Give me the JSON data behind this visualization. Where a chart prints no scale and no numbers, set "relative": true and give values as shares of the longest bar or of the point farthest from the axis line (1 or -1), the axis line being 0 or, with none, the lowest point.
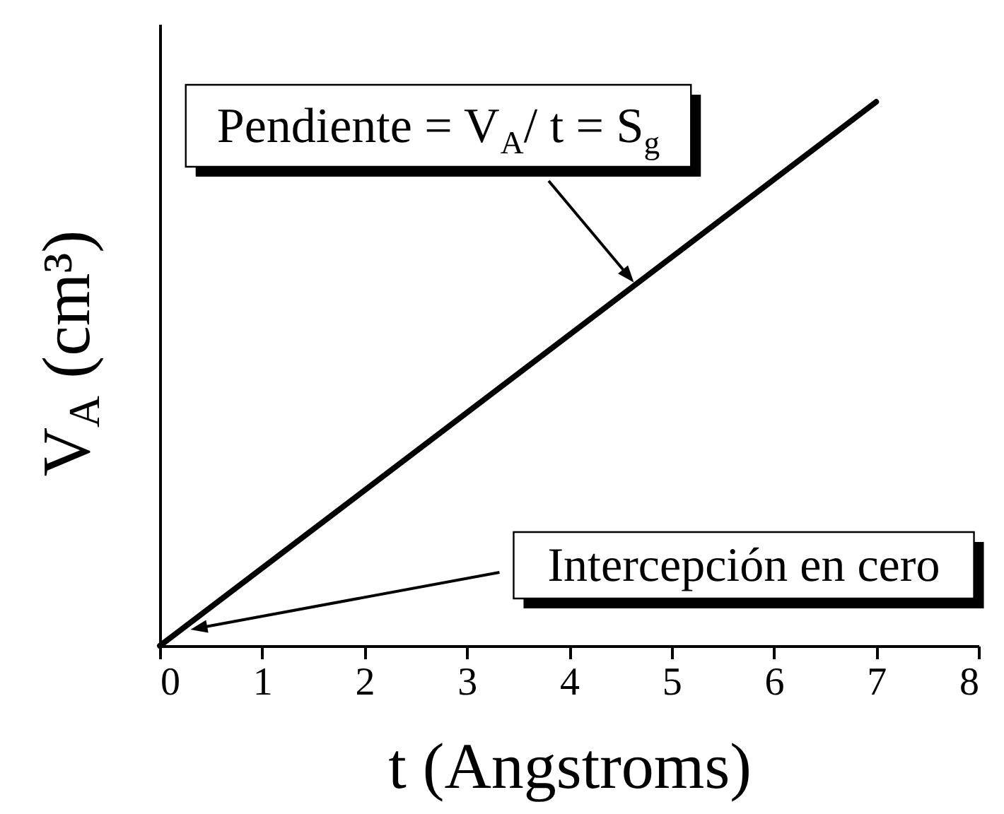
{
  "chart_data": {
    "type": "line",
    "xlabel": "t (Angstroms)",
    "ylabel": "V$_{A}$ (cm³)",
    "x": [
      0,
      7
    ],
    "values": [
      0,
      1
    ],
    "color": "#000000",
    "relative": true,
    "line_style": "solid",
    "xlim": [
      0,
      8
    ],
    "xticks": [
      0,
      1,
      2,
      3,
      4,
      5,
      6,
      7,
      8
    ],
    "annotations": [
      {
        "text": "Pendiente = V$_{A}$/ t = S$_{g}$",
        "x": 4.65,
        "y": 0.664
      },
      {
        "text": "Intercepción en cero",
        "x": 0.3,
        "y": 0.03
      }
    ]
  }
}
